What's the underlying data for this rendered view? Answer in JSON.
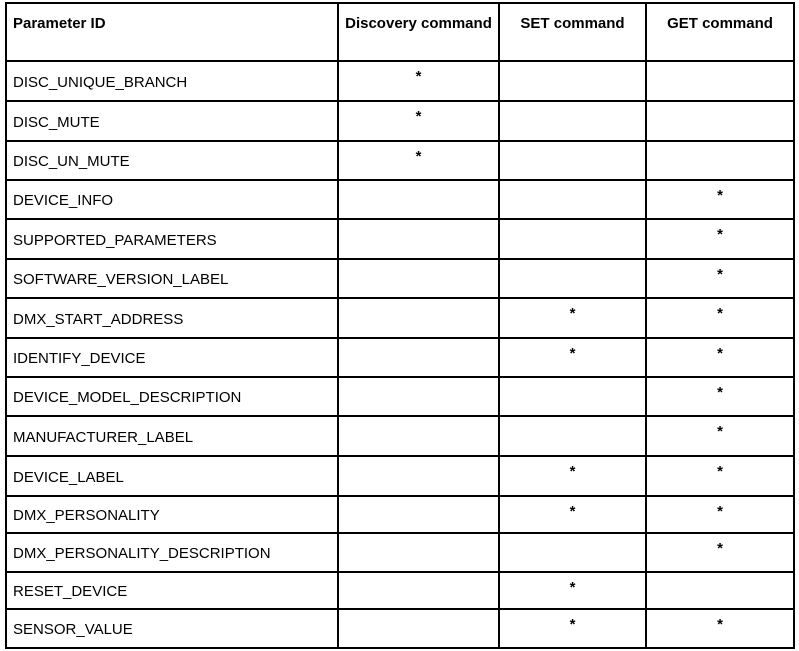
{
  "table": {
    "headers": [
      "Parameter ID",
      "Discovery command",
      "SET command",
      "GET command"
    ],
    "mark_symbol": "*",
    "rows": [
      {
        "id": "DISC_UNIQUE_BRANCH",
        "discovery": "*",
        "set": "",
        "get": ""
      },
      {
        "id": "DISC_MUTE",
        "discovery": "*",
        "set": "",
        "get": ""
      },
      {
        "id": "DISC_UN_MUTE",
        "discovery": "*",
        "set": "",
        "get": ""
      },
      {
        "id": "DEVICE_INFO",
        "discovery": "",
        "set": "",
        "get": "*"
      },
      {
        "id": "SUPPORTED_PARAMETERS",
        "discovery": "",
        "set": "",
        "get": "*"
      },
      {
        "id": "SOFTWARE_VERSION_LABEL",
        "discovery": "",
        "set": "",
        "get": "*"
      },
      {
        "id": "DMX_START_ADDRESS",
        "discovery": "",
        "set": "*",
        "get": "*"
      },
      {
        "id": "IDENTIFY_DEVICE",
        "discovery": "",
        "set": "*",
        "get": "*"
      },
      {
        "id": "DEVICE_MODEL_DESCRIPTION",
        "discovery": "",
        "set": "",
        "get": "*"
      },
      {
        "id": "MANUFACTURER_LABEL",
        "discovery": "",
        "set": "",
        "get": "*"
      },
      {
        "id": "DEVICE_LABEL",
        "discovery": "",
        "set": "*",
        "get": "*"
      },
      {
        "id": "DMX_PERSONALITY",
        "discovery": "",
        "set": "*",
        "get": "*"
      },
      {
        "id": "DMX_PERSONALITY_DESCRIPTION",
        "discovery": "",
        "set": "",
        "get": "*"
      },
      {
        "id": "RESET_DEVICE",
        "discovery": "",
        "set": "*",
        "get": ""
      },
      {
        "id": "SENSOR_VALUE",
        "discovery": "",
        "set": "*",
        "get": "*"
      }
    ]
  }
}
